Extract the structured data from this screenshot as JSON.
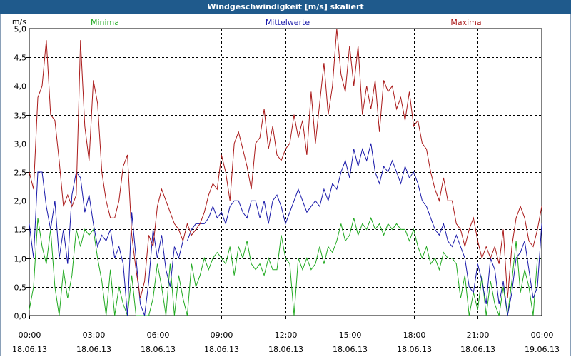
{
  "window": {
    "title": "Windgeschwindigkeit [m/s] skaliert"
  },
  "colors": {
    "minima": "#22aa22",
    "mittel": "#1a1aaa",
    "maxima": "#aa1a1a",
    "grid": "#000000"
  },
  "chart_data": {
    "type": "line",
    "title": "Windgeschwindigkeit [m/s] skaliert",
    "ylabel": "m/s",
    "xlabel": "",
    "ylim": [
      0,
      5
    ],
    "xlim": [
      0,
      24
    ],
    "y_ticks": [
      "0,0",
      "0,5",
      "1,0",
      "1,5",
      "2,0",
      "2,5",
      "3,0",
      "3,5",
      "4,0",
      "4,5",
      "5,0"
    ],
    "x_ticks": [
      {
        "time": "00:00",
        "date": "18.06.13"
      },
      {
        "time": "03:00",
        "date": "18.06.13"
      },
      {
        "time": "06:00",
        "date": "18.06.13"
      },
      {
        "time": "09:00",
        "date": "18.06.13"
      },
      {
        "time": "12:00",
        "date": "18.06.13"
      },
      {
        "time": "15:00",
        "date": "18.06.13"
      },
      {
        "time": "18:00",
        "date": "18.06.13"
      },
      {
        "time": "21:00",
        "date": "18.06.13"
      },
      {
        "time": "00:00",
        "date": "19.06.13"
      }
    ],
    "grid": true,
    "series": [
      {
        "name": "Minima",
        "key": "minima",
        "x": [
          0.0,
          0.2,
          0.4,
          0.6,
          0.8,
          1.0,
          1.2,
          1.4,
          1.6,
          1.8,
          2.0,
          2.2,
          2.4,
          2.6,
          2.8,
          3.0,
          3.2,
          3.4,
          3.6,
          3.8,
          4.0,
          4.2,
          4.4,
          4.6,
          4.8,
          5.0,
          5.2,
          5.4,
          5.6,
          5.8,
          6.0,
          6.2,
          6.4,
          6.6,
          6.8,
          7.0,
          7.2,
          7.4,
          7.6,
          7.8,
          8.0,
          8.2,
          8.4,
          8.6,
          8.8,
          9.0,
          9.2,
          9.4,
          9.6,
          9.8,
          10.0,
          10.2,
          10.4,
          10.6,
          10.8,
          11.0,
          11.2,
          11.4,
          11.6,
          11.8,
          12.0,
          12.2,
          12.4,
          12.6,
          12.8,
          13.0,
          13.2,
          13.4,
          13.6,
          13.8,
          14.0,
          14.2,
          14.4,
          14.6,
          14.8,
          15.0,
          15.2,
          15.4,
          15.6,
          15.8,
          16.0,
          16.2,
          16.4,
          16.6,
          16.8,
          17.0,
          17.2,
          17.4,
          17.6,
          17.8,
          18.0,
          18.2,
          18.4,
          18.6,
          18.8,
          19.0,
          19.2,
          19.4,
          19.6,
          19.8,
          20.0,
          20.2,
          20.4,
          20.6,
          20.8,
          21.0,
          21.2,
          21.4,
          21.6,
          21.8,
          22.0,
          22.2,
          22.4,
          22.6,
          22.8,
          23.0,
          23.2,
          23.4,
          23.6,
          23.8,
          24.0
        ],
        "values": [
          0.1,
          0.5,
          1.7,
          1.2,
          0.9,
          1.5,
          0.5,
          0.0,
          0.8,
          0.3,
          0.7,
          1.5,
          1.2,
          1.5,
          1.4,
          1.5,
          1.0,
          0.6,
          0.0,
          0.8,
          0.0,
          0.5,
          0.2,
          0.0,
          0.7,
          0.0,
          0.0,
          0.0,
          0.0,
          0.3,
          0.9,
          0.5,
          0.0,
          0.9,
          0.0,
          0.7,
          0.3,
          0.0,
          0.9,
          0.5,
          0.7,
          1.0,
          0.8,
          1.0,
          1.1,
          1.0,
          0.9,
          1.2,
          0.7,
          1.2,
          1.0,
          1.3,
          0.9,
          0.8,
          0.9,
          0.7,
          1.0,
          0.8,
          0.8,
          1.4,
          1.0,
          0.9,
          0.0,
          1.0,
          0.8,
          1.0,
          0.8,
          0.9,
          1.2,
          0.9,
          1.2,
          1.1,
          1.3,
          1.6,
          1.3,
          1.4,
          1.7,
          1.4,
          1.6,
          1.5,
          1.7,
          1.5,
          1.6,
          1.4,
          1.6,
          1.5,
          1.6,
          1.5,
          1.5,
          1.3,
          1.5,
          1.2,
          1.0,
          1.2,
          0.9,
          1.0,
          0.8,
          1.1,
          1.0,
          1.0,
          0.9,
          0.3,
          0.7,
          0.0,
          0.4,
          0.1,
          0.7,
          0.0,
          0.6,
          0.2,
          0.0,
          0.5,
          0.0,
          0.6,
          1.3,
          0.4,
          0.8,
          0.5,
          0.0,
          1.0,
          1.0
        ]
      },
      {
        "name": "Mittelwerte",
        "key": "mittel",
        "x": [
          0.0,
          0.2,
          0.4,
          0.6,
          0.8,
          1.0,
          1.2,
          1.4,
          1.6,
          1.8,
          2.0,
          2.2,
          2.4,
          2.6,
          2.8,
          3.0,
          3.2,
          3.4,
          3.6,
          3.8,
          4.0,
          4.2,
          4.4,
          4.6,
          4.8,
          5.0,
          5.2,
          5.4,
          5.6,
          5.8,
          6.0,
          6.2,
          6.4,
          6.6,
          6.8,
          7.0,
          7.2,
          7.4,
          7.6,
          7.8,
          8.0,
          8.2,
          8.4,
          8.6,
          8.8,
          9.0,
          9.2,
          9.4,
          9.6,
          9.8,
          10.0,
          10.2,
          10.4,
          10.6,
          10.8,
          11.0,
          11.2,
          11.4,
          11.6,
          11.8,
          12.0,
          12.2,
          12.4,
          12.6,
          12.8,
          13.0,
          13.2,
          13.4,
          13.6,
          13.8,
          14.0,
          14.2,
          14.4,
          14.6,
          14.8,
          15.0,
          15.2,
          15.4,
          15.6,
          15.8,
          16.0,
          16.2,
          16.4,
          16.6,
          16.8,
          17.0,
          17.2,
          17.4,
          17.6,
          17.8,
          18.0,
          18.2,
          18.4,
          18.6,
          18.8,
          19.0,
          19.2,
          19.4,
          19.6,
          19.8,
          20.0,
          20.2,
          20.4,
          20.6,
          20.8,
          21.0,
          21.2,
          21.4,
          21.6,
          21.8,
          22.0,
          22.2,
          22.4,
          22.6,
          22.8,
          23.0,
          23.2,
          23.4,
          23.6,
          23.8,
          24.0
        ],
        "values": [
          1.6,
          1.0,
          2.5,
          2.5,
          1.9,
          1.5,
          2.0,
          1.0,
          1.5,
          0.9,
          2.1,
          2.5,
          2.4,
          1.8,
          2.1,
          1.6,
          1.2,
          1.4,
          1.3,
          1.5,
          1.0,
          1.2,
          0.9,
          0.0,
          1.8,
          1.0,
          0.2,
          0.0,
          0.6,
          1.5,
          1.0,
          1.4,
          0.8,
          0.5,
          1.2,
          1.0,
          1.3,
          1.3,
          1.5,
          1.6,
          1.6,
          1.6,
          1.7,
          1.9,
          1.7,
          1.8,
          1.6,
          1.9,
          2.0,
          2.0,
          1.8,
          1.7,
          2.0,
          2.0,
          1.7,
          2.0,
          1.6,
          2.0,
          2.1,
          1.9,
          1.6,
          1.8,
          2.0,
          2.2,
          2.0,
          1.8,
          1.9,
          2.0,
          1.9,
          2.2,
          2.0,
          2.3,
          2.2,
          2.5,
          2.7,
          2.4,
          2.9,
          2.6,
          2.9,
          2.7,
          3.0,
          2.5,
          2.3,
          2.6,
          2.5,
          2.7,
          2.5,
          2.3,
          2.6,
          2.4,
          2.5,
          2.3,
          2.0,
          1.9,
          1.7,
          1.5,
          1.4,
          1.6,
          1.3,
          1.2,
          1.4,
          1.2,
          1.0,
          0.5,
          0.4,
          0.9,
          0.6,
          0.2,
          1.0,
          0.8,
          0.2,
          0.6,
          0.0,
          0.4,
          1.0,
          1.1,
          1.3,
          0.8,
          0.3,
          0.5,
          1.6
        ]
      },
      {
        "name": "Maxima",
        "key": "maxima",
        "x": [
          0.0,
          0.2,
          0.4,
          0.6,
          0.8,
          1.0,
          1.2,
          1.4,
          1.6,
          1.8,
          2.0,
          2.2,
          2.4,
          2.6,
          2.8,
          3.0,
          3.2,
          3.4,
          3.6,
          3.8,
          4.0,
          4.2,
          4.4,
          4.6,
          4.8,
          5.0,
          5.2,
          5.4,
          5.6,
          5.8,
          6.0,
          6.2,
          6.4,
          6.6,
          6.8,
          7.0,
          7.2,
          7.4,
          7.6,
          7.8,
          8.0,
          8.2,
          8.4,
          8.6,
          8.8,
          9.0,
          9.2,
          9.4,
          9.6,
          9.8,
          10.0,
          10.2,
          10.4,
          10.6,
          10.8,
          11.0,
          11.2,
          11.4,
          11.6,
          11.8,
          12.0,
          12.2,
          12.4,
          12.6,
          12.8,
          13.0,
          13.2,
          13.4,
          13.6,
          13.8,
          14.0,
          14.2,
          14.4,
          14.6,
          14.8,
          15.0,
          15.2,
          15.4,
          15.6,
          15.8,
          16.0,
          16.2,
          16.4,
          16.6,
          16.8,
          17.0,
          17.2,
          17.4,
          17.6,
          17.8,
          18.0,
          18.2,
          18.4,
          18.6,
          18.8,
          19.0,
          19.2,
          19.4,
          19.6,
          19.8,
          20.0,
          20.2,
          20.4,
          20.6,
          20.8,
          21.0,
          21.2,
          21.4,
          21.6,
          21.8,
          22.0,
          22.2,
          22.4,
          22.6,
          22.8,
          23.0,
          23.2,
          23.4,
          23.6,
          23.8,
          24.0
        ],
        "values": [
          2.5,
          2.2,
          3.8,
          4.0,
          4.8,
          3.5,
          3.4,
          2.7,
          1.9,
          2.1,
          1.9,
          2.1,
          4.8,
          3.3,
          2.7,
          4.1,
          3.7,
          2.5,
          2.0,
          1.7,
          1.7,
          2.0,
          2.6,
          2.8,
          1.4,
          0.8,
          0.3,
          0.6,
          1.4,
          1.2,
          1.9,
          2.2,
          2.0,
          1.8,
          1.6,
          1.5,
          1.3,
          1.6,
          1.4,
          1.5,
          1.6,
          1.8,
          2.1,
          2.3,
          2.2,
          2.8,
          2.5,
          2.0,
          3.0,
          3.2,
          2.9,
          2.6,
          2.2,
          3.0,
          3.1,
          3.6,
          2.9,
          3.3,
          2.8,
          2.7,
          2.9,
          3.0,
          3.5,
          3.1,
          3.4,
          2.8,
          3.9,
          3.0,
          3.7,
          4.4,
          3.5,
          4.0,
          5.0,
          4.2,
          3.9,
          4.7,
          4.0,
          4.7,
          3.5,
          4.0,
          3.6,
          4.1,
          3.2,
          4.1,
          3.9,
          4.0,
          3.6,
          3.8,
          3.4,
          3.9,
          3.3,
          3.4,
          3.0,
          2.9,
          2.5,
          2.2,
          2.0,
          2.4,
          2.0,
          2.0,
          1.6,
          1.5,
          1.2,
          1.5,
          1.7,
          1.3,
          1.0,
          1.2,
          1.0,
          1.2,
          0.9,
          1.5,
          0.3,
          1.2,
          1.7,
          1.9,
          1.7,
          1.3,
          1.2,
          1.5,
          1.9
        ]
      }
    ]
  }
}
